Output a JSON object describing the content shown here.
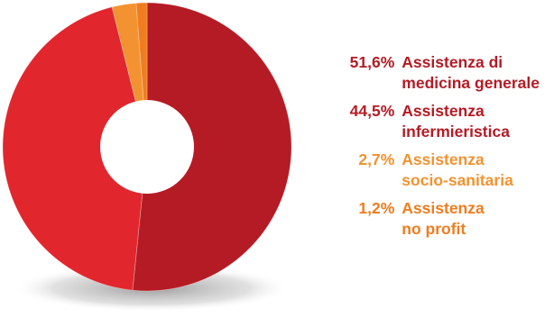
{
  "chart_data": {
    "type": "pie",
    "variant": "donut",
    "slices": [
      {
        "label": "Assistenza di\nmedicina generale",
        "value": 51.6,
        "value_label": "51,6%",
        "color": "#b51b24"
      },
      {
        "label": "Assistenza\ninfermieristica",
        "value": 44.5,
        "value_label": "44,5%",
        "color": "#e1262d"
      },
      {
        "label": "Assistenza\nsocio-sanitaria",
        "value": 2.7,
        "value_label": "2,7%",
        "color": "#f39230"
      },
      {
        "label": "Assistenza\nno profit",
        "value": 1.2,
        "value_label": "1,2%",
        "color": "#f07c1f"
      }
    ],
    "legend_placement": "right"
  },
  "colors": {
    "dark_red": "#b51b24",
    "red": "#e1262d",
    "orange": "#f39230",
    "shadow": "#8a8a8a"
  }
}
